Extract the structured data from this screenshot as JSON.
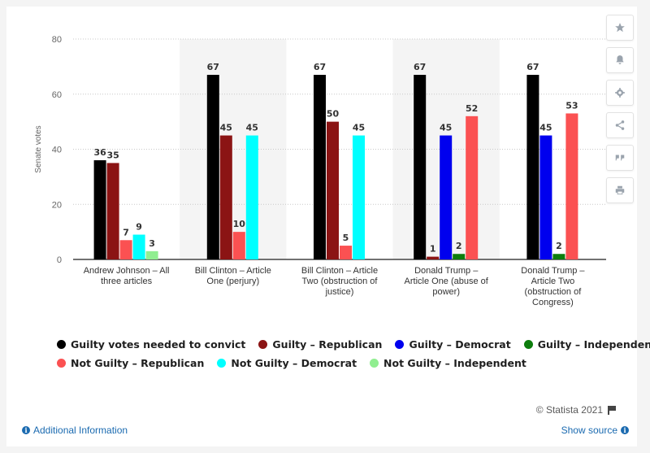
{
  "chart_data": {
    "type": "bar",
    "ylabel": "Senate votes",
    "ylim": [
      0,
      80
    ],
    "yticks": [
      0,
      20,
      40,
      60,
      80
    ],
    "grid": true,
    "legend_position": "bottom",
    "categories": [
      [
        "Andrew Johnson – All",
        "three articles"
      ],
      [
        "Bill Clinton – Article",
        "One (perjury)"
      ],
      [
        "Bill Clinton – Article",
        "Two (obstruction of",
        "justice)"
      ],
      [
        "Donald Trump –",
        "Article One (abuse of",
        "power)"
      ],
      [
        "Donald Trump –",
        "Article Two",
        "(obstruction of",
        "Congress)"
      ]
    ],
    "shaded_categories": [
      1,
      3
    ],
    "series": [
      {
        "name": "Guilty votes needed to convict",
        "color": "#000000",
        "values": [
          36,
          67,
          67,
          67,
          67
        ]
      },
      {
        "name": "Guilty – Republican",
        "color": "#8b1414",
        "values": [
          35,
          45,
          50,
          1,
          null
        ]
      },
      {
        "name": "Guilty – Democrat",
        "color": "#0000ee",
        "values": [
          null,
          null,
          null,
          45,
          45
        ]
      },
      {
        "name": "Guilty – Independent",
        "color": "#0d7d0d",
        "values": [
          null,
          null,
          null,
          2,
          2
        ]
      },
      {
        "name": "Not Guilty – Republican",
        "color": "#fb5152",
        "values": [
          7,
          10,
          5,
          52,
          53
        ]
      },
      {
        "name": "Not Guilty – Democrat",
        "color": "#00ffff",
        "values": [
          9,
          45,
          45,
          null,
          null
        ]
      },
      {
        "name": "Not Guilty – Independent",
        "color": "#90ee90",
        "values": [
          3,
          null,
          null,
          null,
          null
        ]
      }
    ]
  },
  "footer": {
    "credit": "© Statista 2021",
    "additional_info": "Additional Information",
    "show_source": "Show source"
  },
  "sidebar": {
    "icons": [
      "star-icon",
      "bell-icon",
      "gear-icon",
      "share-icon",
      "quote-icon",
      "print-icon"
    ]
  }
}
